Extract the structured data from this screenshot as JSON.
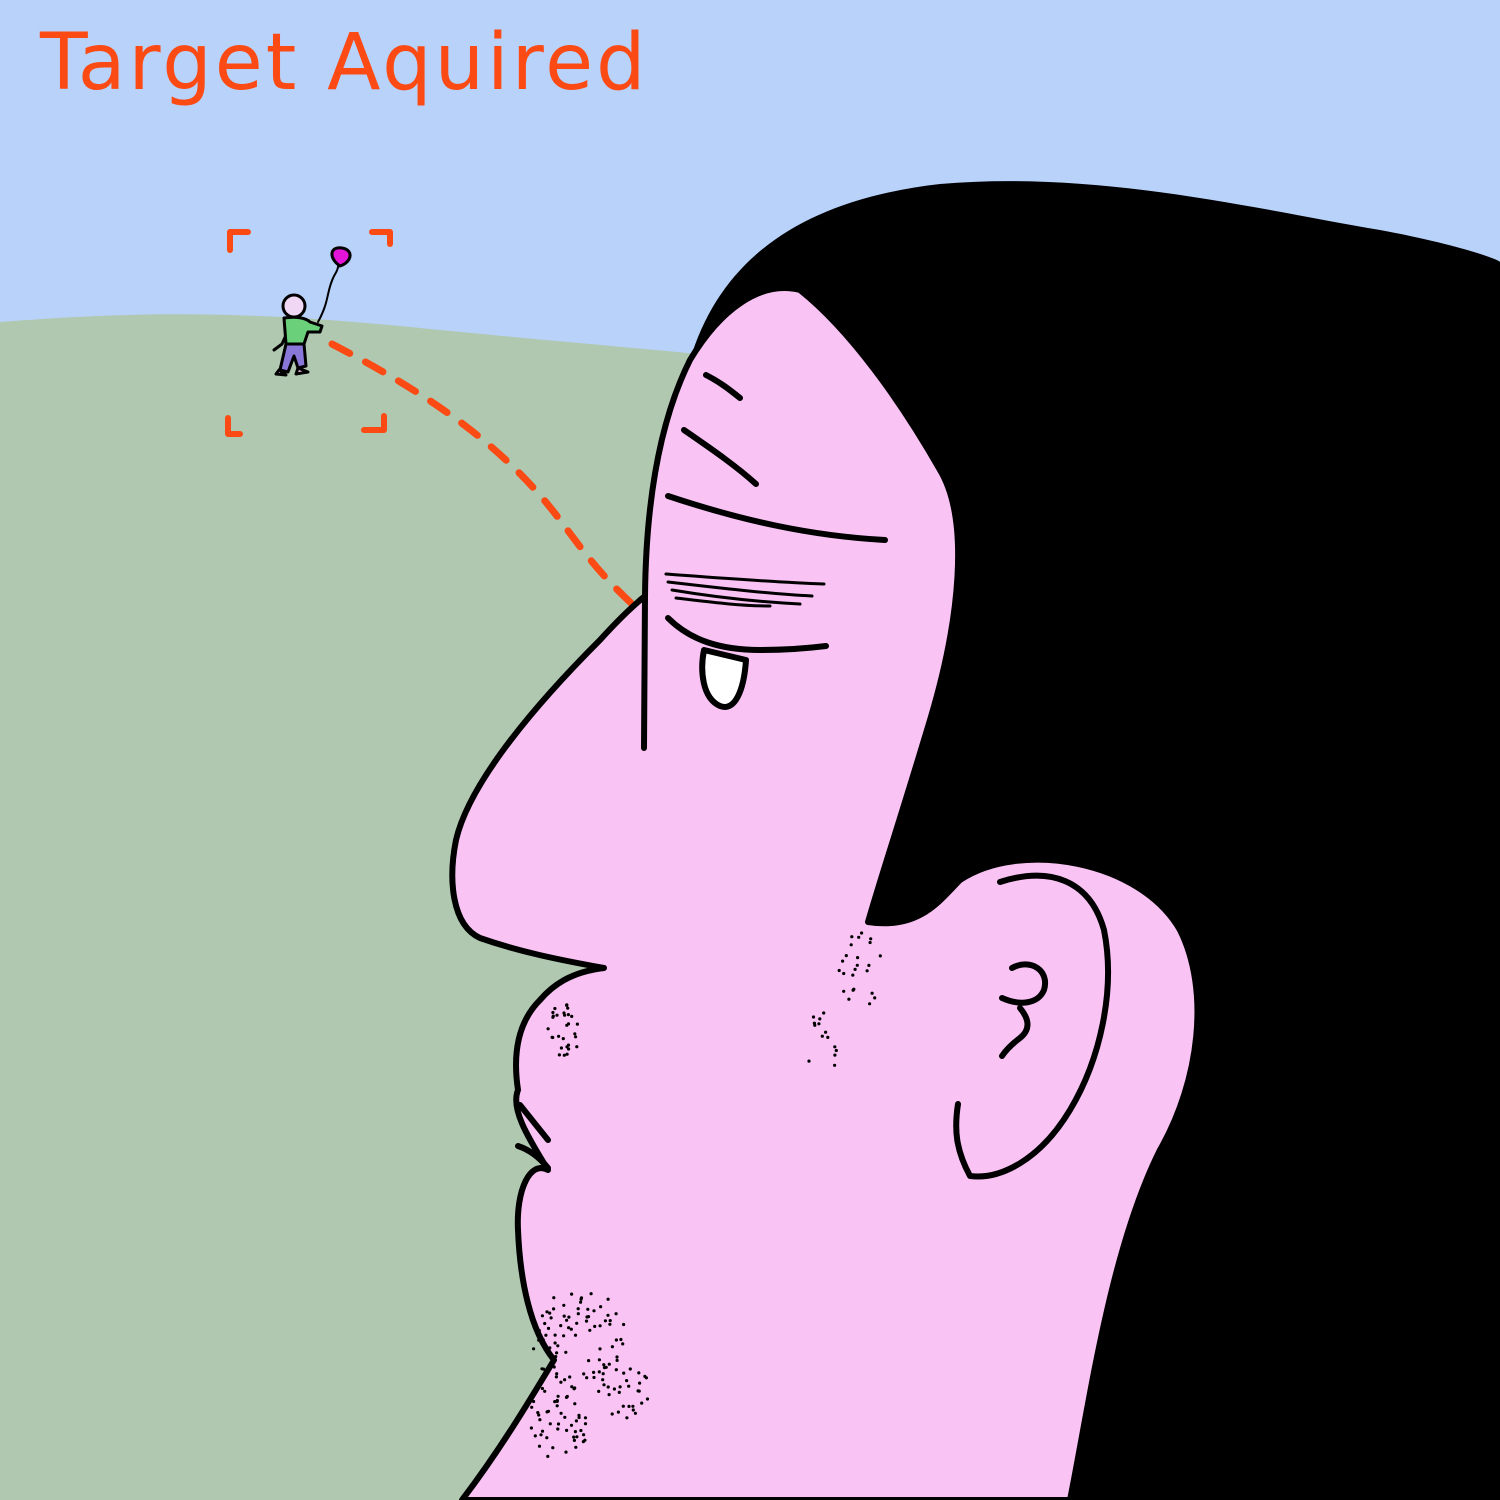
{
  "caption": {
    "text": "Target Aquired"
  },
  "colors": {
    "sky": "#b9d2fa",
    "hill": "#b0c8b0",
    "skin": "#f9c3f4",
    "hair": "#000000",
    "outline": "#000000",
    "accent": "#fb4a14",
    "balloon": "#e415d8",
    "shirt": "#6bd07a",
    "pants": "#8a78d9"
  },
  "icons": [
    "target-brackets-icon",
    "balloon-icon",
    "sight-line-icon"
  ]
}
